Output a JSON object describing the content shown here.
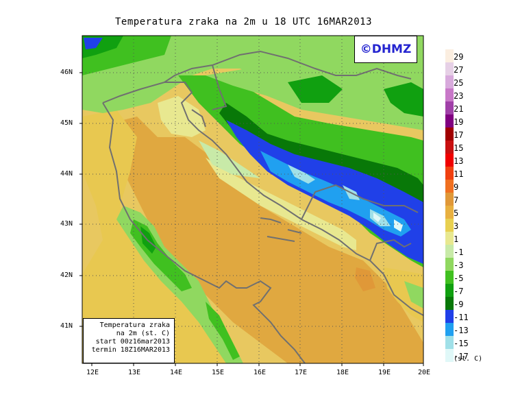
{
  "title": "Temperatura zraka na 2m u 18 UTC 16MAR2013",
  "logo": "©DHMZ",
  "info_box": {
    "line1": "Temperatura zraka",
    "line2": "na 2m (st. C)",
    "line3": "start 00z16mar2013",
    "line4": "termin 18Z16MAR2013"
  },
  "lat_labels": [
    "46N",
    "45N",
    "44N",
    "43N",
    "42N",
    "41N"
  ],
  "lon_labels": [
    "12E",
    "13E",
    "14E",
    "15E",
    "16E",
    "17E",
    "18E",
    "19E",
    "20E"
  ],
  "scale": {
    "labels": [
      "29",
      "27",
      "25",
      "23",
      "21",
      "19",
      "17",
      "15",
      "13",
      "11",
      "9",
      "7",
      "5",
      "3",
      "1",
      "-1",
      "-3",
      "-5",
      "-7",
      "-9",
      "-11",
      "-13",
      "-15",
      "-17"
    ],
    "colors": [
      "#fbeee0",
      "#e6d0e6",
      "#d8aadc",
      "#c878c8",
      "#a040a8",
      "#800080",
      "#a00000",
      "#c81010",
      "#f00000",
      "#f04010",
      "#f07020",
      "#e09838",
      "#e8b040",
      "#e8d050",
      "#e8e890",
      "#c8eaa8",
      "#90d860",
      "#40c020",
      "#10a010",
      "#087808",
      "#2040e8",
      "#20a0f0",
      "#a0e0e8",
      "#e0f8f8"
    ],
    "units": "(st. C)"
  }
}
